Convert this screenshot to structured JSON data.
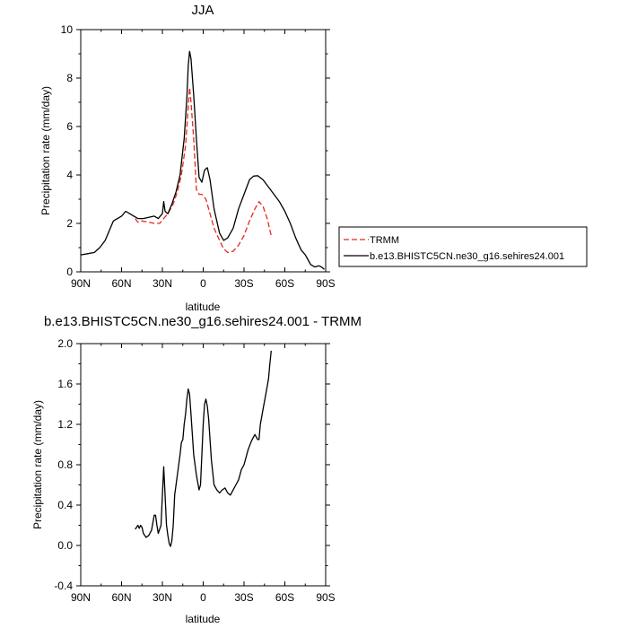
{
  "chart_data": [
    {
      "type": "line",
      "title": "JJA",
      "xlabel": "latitude",
      "ylabel": "Precipitation rate (mm/day)",
      "xlim": [
        90,
        -90
      ],
      "ylim": [
        0,
        10
      ],
      "x_ticks": [
        90,
        60,
        30,
        0,
        -30,
        -60,
        -90
      ],
      "x_tick_labels": [
        "90N",
        "60N",
        "30N",
        "0",
        "30S",
        "60S",
        "90S"
      ],
      "y_ticks": [
        0,
        2,
        4,
        6,
        8,
        10
      ],
      "y_tick_labels": [
        "0",
        "2",
        "4",
        "6",
        "8",
        "10"
      ],
      "legend": [
        "TRMM",
        "b.e13.BHISTC5CN.ne30_g16.sehires24.001"
      ],
      "series": [
        {
          "name": "TRMM",
          "color": "#e8281e",
          "dash": true,
          "points": [
            [
              50,
              2.2
            ],
            [
              48,
              2.05
            ],
            [
              45,
              2.1
            ],
            [
              40,
              2.05
            ],
            [
              36,
              2.0
            ],
            [
              32,
              2.0
            ],
            [
              29,
              2.2
            ],
            [
              26,
              2.4
            ],
            [
              22,
              2.8
            ],
            [
              19,
              3.3
            ],
            [
              16,
              4.0
            ],
            [
              13,
              5.2
            ],
            [
              11,
              6.8
            ],
            [
              10,
              7.6
            ],
            [
              9,
              7.0
            ],
            [
              7,
              5.5
            ],
            [
              5,
              3.4
            ],
            [
              3,
              3.2
            ],
            [
              1,
              3.2
            ],
            [
              -2,
              3.0
            ],
            [
              -5,
              2.4
            ],
            [
              -8,
              1.8
            ],
            [
              -12,
              1.3
            ],
            [
              -15,
              0.95
            ],
            [
              -18,
              0.8
            ],
            [
              -22,
              0.85
            ],
            [
              -26,
              1.1
            ],
            [
              -30,
              1.5
            ],
            [
              -34,
              2.1
            ],
            [
              -38,
              2.6
            ],
            [
              -41,
              2.9
            ],
            [
              -44,
              2.7
            ],
            [
              -47,
              2.2
            ],
            [
              -50,
              1.5
            ]
          ]
        },
        {
          "name": "b.e13.BHISTC5CN.ne30_g16.sehires24.001",
          "color": "#000000",
          "dash": false,
          "points": [
            [
              90,
              0.7
            ],
            [
              85,
              0.75
            ],
            [
              80,
              0.8
            ],
            [
              76,
              1.0
            ],
            [
              72,
              1.3
            ],
            [
              69,
              1.7
            ],
            [
              66,
              2.1
            ],
            [
              63,
              2.2
            ],
            [
              60,
              2.3
            ],
            [
              57,
              2.5
            ],
            [
              54,
              2.4
            ],
            [
              51,
              2.3
            ],
            [
              48,
              2.2
            ],
            [
              44,
              2.2
            ],
            [
              40,
              2.25
            ],
            [
              36,
              2.3
            ],
            [
              33,
              2.2
            ],
            [
              30,
              2.4
            ],
            [
              29,
              2.9
            ],
            [
              28,
              2.5
            ],
            [
              26,
              2.4
            ],
            [
              23,
              2.8
            ],
            [
              20,
              3.3
            ],
            [
              17,
              4.0
            ],
            [
              14,
              5.5
            ],
            [
              12,
              7.2
            ],
            [
              11,
              8.5
            ],
            [
              10,
              9.1
            ],
            [
              9,
              8.8
            ],
            [
              7,
              7.3
            ],
            [
              5,
              5.5
            ],
            [
              3,
              3.9
            ],
            [
              1,
              3.7
            ],
            [
              -1,
              4.2
            ],
            [
              -3,
              4.3
            ],
            [
              -5,
              3.8
            ],
            [
              -8,
              2.6
            ],
            [
              -12,
              1.6
            ],
            [
              -15,
              1.3
            ],
            [
              -18,
              1.4
            ],
            [
              -22,
              1.8
            ],
            [
              -26,
              2.6
            ],
            [
              -30,
              3.2
            ],
            [
              -34,
              3.8
            ],
            [
              -37,
              3.95
            ],
            [
              -40,
              3.97
            ],
            [
              -44,
              3.8
            ],
            [
              -48,
              3.5
            ],
            [
              -52,
              3.2
            ],
            [
              -56,
              2.9
            ],
            [
              -60,
              2.5
            ],
            [
              -64,
              2.0
            ],
            [
              -68,
              1.4
            ],
            [
              -72,
              0.9
            ],
            [
              -75,
              0.7
            ],
            [
              -77,
              0.5
            ],
            [
              -79,
              0.3
            ],
            [
              -82,
              0.2
            ],
            [
              -85,
              0.25
            ],
            [
              -87,
              0.2
            ],
            [
              -89,
              0.1
            ]
          ]
        }
      ]
    },
    {
      "type": "line",
      "title": "b.e13.BHISTC5CN.ne30_g16.sehires24.001 - TRMM",
      "xlabel": "latitude",
      "ylabel": "Precipitation rate (mm/day)",
      "xlim": [
        90,
        -90
      ],
      "ylim": [
        -0.4,
        2.0
      ],
      "x_ticks": [
        90,
        60,
        30,
        0,
        -30,
        -60,
        -90
      ],
      "x_tick_labels": [
        "90N",
        "60N",
        "30N",
        "0",
        "30S",
        "60S",
        "90S"
      ],
      "y_ticks": [
        -0.4,
        0.0,
        0.4,
        0.8,
        1.2,
        1.6,
        2.0
      ],
      "y_tick_labels": [
        "-0.4",
        "0.0",
        "0.4",
        "0.8",
        "1.2",
        "1.6",
        "2.0"
      ],
      "series": [
        {
          "color": "#000000",
          "dash": false,
          "points": [
            [
              50,
              0.16
            ],
            [
              49,
              0.18
            ],
            [
              48,
              0.2
            ],
            [
              47,
              0.17
            ],
            [
              46,
              0.2
            ],
            [
              45,
              0.18
            ],
            [
              44,
              0.12
            ],
            [
              42,
              0.08
            ],
            [
              40,
              0.1
            ],
            [
              38,
              0.15
            ],
            [
              36,
              0.3
            ],
            [
              35,
              0.3
            ],
            [
              34,
              0.2
            ],
            [
              33,
              0.12
            ],
            [
              31,
              0.2
            ],
            [
              30,
              0.5
            ],
            [
              29,
              0.78
            ],
            [
              28,
              0.5
            ],
            [
              27,
              0.2
            ],
            [
              26,
              0.1
            ],
            [
              25,
              0.02
            ],
            [
              24,
              -0.01
            ],
            [
              23,
              0.05
            ],
            [
              22,
              0.2
            ],
            [
              21,
              0.5
            ],
            [
              19,
              0.7
            ],
            [
              17,
              0.9
            ],
            [
              16,
              1.02
            ],
            [
              15,
              1.05
            ],
            [
              14,
              1.2
            ],
            [
              13,
              1.3
            ],
            [
              12,
              1.45
            ],
            [
              11,
              1.55
            ],
            [
              10,
              1.5
            ],
            [
              9,
              1.3
            ],
            [
              7,
              0.9
            ],
            [
              5,
              0.7
            ],
            [
              3,
              0.55
            ],
            [
              2,
              0.6
            ],
            [
              1,
              0.9
            ],
            [
              0,
              1.2
            ],
            [
              -1,
              1.4
            ],
            [
              -2,
              1.45
            ],
            [
              -3,
              1.38
            ],
            [
              -4,
              1.25
            ],
            [
              -6,
              0.85
            ],
            [
              -8,
              0.6
            ],
            [
              -10,
              0.55
            ],
            [
              -12,
              0.52
            ],
            [
              -14,
              0.55
            ],
            [
              -16,
              0.57
            ],
            [
              -18,
              0.52
            ],
            [
              -20,
              0.5
            ],
            [
              -22,
              0.55
            ],
            [
              -24,
              0.6
            ],
            [
              -26,
              0.65
            ],
            [
              -28,
              0.75
            ],
            [
              -30,
              0.8
            ],
            [
              -33,
              0.95
            ],
            [
              -35,
              1.02
            ],
            [
              -36,
              1.05
            ],
            [
              -38,
              1.1
            ],
            [
              -40,
              1.05
            ],
            [
              -41,
              1.05
            ],
            [
              -42,
              1.2
            ],
            [
              -44,
              1.35
            ],
            [
              -46,
              1.5
            ],
            [
              -48,
              1.65
            ],
            [
              -49,
              1.8
            ],
            [
              -50,
              1.93
            ]
          ]
        }
      ]
    }
  ]
}
